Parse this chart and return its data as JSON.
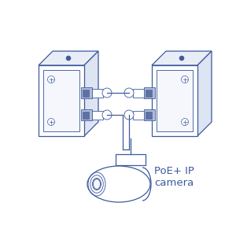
{
  "line_color": "#3d5a9e",
  "line_color_dark": "#2d4080",
  "bg_color": "#ffffff",
  "text_color": "#3d5a9e",
  "label_text": "PoE+ IP\ncamera",
  "label_fontsize": 9.5,
  "fig_width": 3.0,
  "fig_height": 3.0,
  "dpi": 100,
  "face_color": "#f5f7fc",
  "side_color": "#dde4f2",
  "top_color": "#e8edf7",
  "port_color": "#b0bdd8",
  "port_dark": "#6070a0"
}
